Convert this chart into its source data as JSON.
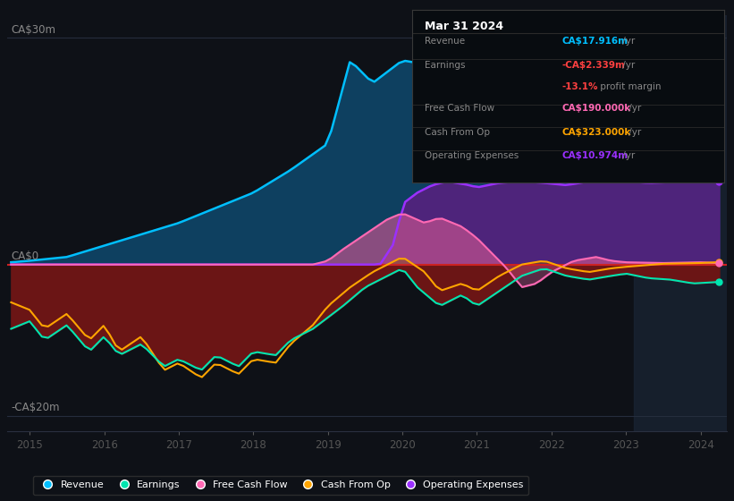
{
  "bg_color": "#0e1117",
  "plot_bg_color": "#0e1117",
  "y_label_top": "CA$30m",
  "y_label_mid": "CA$0",
  "y_label_bot": "-CA$20m",
  "x_ticks": [
    2015,
    2016,
    2017,
    2018,
    2019,
    2020,
    2021,
    2022,
    2023,
    2024
  ],
  "xlim": [
    2014.7,
    2024.35
  ],
  "ylim": [
    -22,
    33
  ],
  "highlight_start": 2023.1,
  "highlight_end": 2024.35,
  "colors": {
    "revenue": "#00bfff",
    "earnings": "#00e5b0",
    "free_cash_flow": "#ff69b4",
    "cash_from_op": "#ffa500",
    "operating_expenses": "#9b30ff",
    "revenue_fill": "#0e4060",
    "earnings_neg_fill": "#6b1515",
    "opex_fill": "#5a2080",
    "fcf_fill": "#cc5590",
    "cfo_fill_neg": "#8b5500",
    "highlight_bg": "#1a2535",
    "zero_line": "#cc2222",
    "grid_line": "#252d3d"
  },
  "info_box": {
    "title": "Mar 31 2024",
    "rows": [
      {
        "label": "Revenue",
        "value": "CA$17.916m",
        "suffix": " /yr",
        "color": "#00bfff"
      },
      {
        "label": "Earnings",
        "value": "-CA$2.339m",
        "suffix": " /yr",
        "color": "#ff4040"
      },
      {
        "label": "",
        "value": "-13.1%",
        "suffix": " profit margin",
        "color": "#ff4040"
      },
      {
        "label": "Free Cash Flow",
        "value": "CA$190.000k",
        "suffix": " /yr",
        "color": "#ff69b4"
      },
      {
        "label": "Cash From Op",
        "value": "CA$323.000k",
        "suffix": " /yr",
        "color": "#ffa500"
      },
      {
        "label": "Operating Expenses",
        "value": "CA$10.974m",
        "suffix": " /yr",
        "color": "#9b30ff"
      }
    ]
  },
  "legend": [
    {
      "label": "Revenue",
      "color": "#00bfff"
    },
    {
      "label": "Earnings",
      "color": "#00e5b0"
    },
    {
      "label": "Free Cash Flow",
      "color": "#ff69b4"
    },
    {
      "label": "Cash From Op",
      "color": "#ffa500"
    },
    {
      "label": "Operating Expenses",
      "color": "#9b30ff"
    }
  ]
}
